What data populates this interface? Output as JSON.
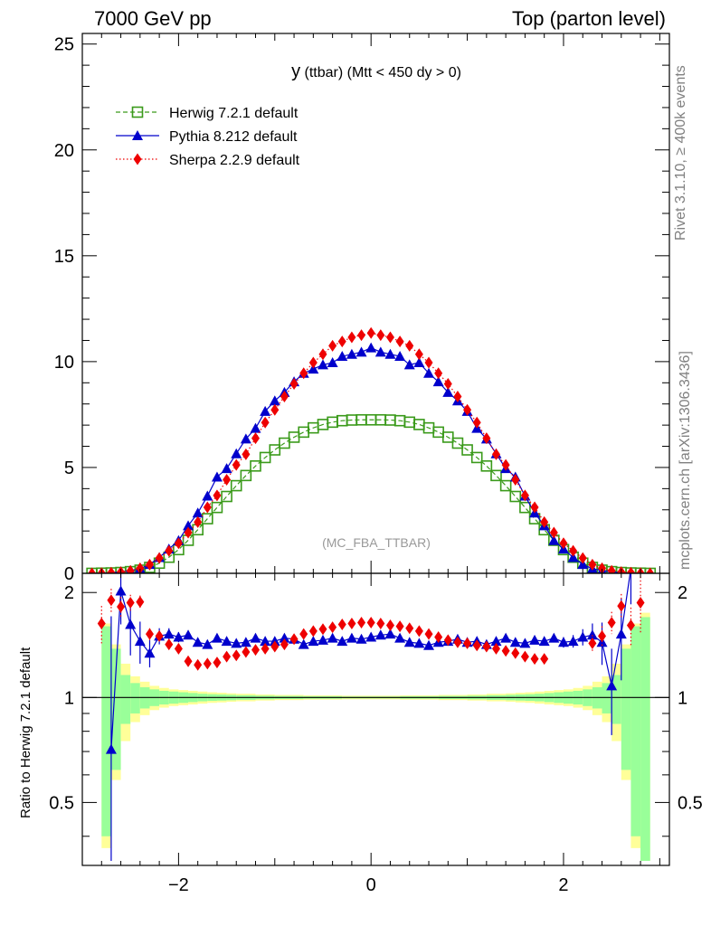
{
  "header": {
    "left": "7000 GeV pp",
    "right": "Top (parton level)"
  },
  "side_labels": {
    "rivet": "Rivet 3.1.10, ≥ 400k events",
    "mcplots": "mcplots.cern.ch [arXiv:1306.3436]"
  },
  "chart_data": [
    {
      "type": "line",
      "title": "y (ttbar) (Mtt < 450 dy > 0)",
      "title_main": "y",
      "title_rest": " (ttbar) (Mtt < 450 dy > 0)",
      "annotation": "(MC_FBA_TTBAR)",
      "xlim": [
        -3.0,
        3.1
      ],
      "ylim": [
        0,
        25.5
      ],
      "xticks": [
        -2,
        0,
        2
      ],
      "xtick_labels": [
        "−2",
        "0",
        "2"
      ],
      "yticks": [
        0,
        5,
        10,
        15,
        20,
        25
      ],
      "ytick_labels": [
        "0",
        "5",
        "10",
        "15",
        "20",
        "25"
      ],
      "legend_position": "top-left",
      "series": [
        {
          "name": "Herwig 7.2.1 default",
          "color": "#3a9a1a",
          "marker": "open-square",
          "linestyle": "dashed",
          "x": [
            -2.9,
            -2.8,
            -2.7,
            -2.6,
            -2.5,
            -2.4,
            -2.3,
            -2.2,
            -2.1,
            -2.0,
            -1.9,
            -1.8,
            -1.7,
            -1.6,
            -1.5,
            -1.4,
            -1.3,
            -1.2,
            -1.1,
            -1.0,
            -0.9,
            -0.8,
            -0.7,
            -0.6,
            -0.5,
            -0.4,
            -0.3,
            -0.2,
            -0.1,
            0.0,
            0.1,
            0.2,
            0.3,
            0.4,
            0.5,
            0.6,
            0.7,
            0.8,
            0.9,
            1.0,
            1.1,
            1.2,
            1.3,
            1.4,
            1.5,
            1.6,
            1.7,
            1.8,
            1.9,
            2.0,
            2.1,
            2.2,
            2.3,
            2.4,
            2.5,
            2.6,
            2.7,
            2.8,
            2.9
          ],
          "values": [
            0.0,
            0.01,
            0.02,
            0.04,
            0.08,
            0.15,
            0.28,
            0.48,
            0.76,
            1.12,
            1.56,
            2.06,
            2.58,
            3.11,
            3.63,
            4.14,
            4.62,
            5.07,
            5.47,
            5.83,
            6.15,
            6.43,
            6.67,
            6.87,
            7.03,
            7.14,
            7.21,
            7.24,
            7.25,
            7.25,
            7.25,
            7.24,
            7.21,
            7.14,
            7.03,
            6.87,
            6.67,
            6.43,
            6.15,
            5.83,
            5.47,
            5.07,
            4.62,
            4.14,
            3.63,
            3.11,
            2.58,
            2.06,
            1.56,
            1.12,
            0.76,
            0.48,
            0.28,
            0.15,
            0.08,
            0.04,
            0.02,
            0.01,
            0.0
          ]
        },
        {
          "name": "Pythia 8.212 default",
          "color": "#0000cc",
          "marker": "filled-triangle",
          "linestyle": "solid",
          "x": [
            -2.9,
            -2.8,
            -2.7,
            -2.6,
            -2.5,
            -2.4,
            -2.3,
            -2.2,
            -2.1,
            -2.0,
            -1.9,
            -1.8,
            -1.7,
            -1.6,
            -1.5,
            -1.4,
            -1.3,
            -1.2,
            -1.1,
            -1.0,
            -0.9,
            -0.8,
            -0.7,
            -0.6,
            -0.5,
            -0.4,
            -0.3,
            -0.2,
            -0.1,
            0.0,
            0.1,
            0.2,
            0.3,
            0.4,
            0.5,
            0.6,
            0.7,
            0.8,
            0.9,
            1.0,
            1.1,
            1.2,
            1.3,
            1.4,
            1.5,
            1.6,
            1.7,
            1.8,
            1.9,
            2.0,
            2.1,
            2.2,
            2.3,
            2.4,
            2.5,
            2.6,
            2.7,
            2.8,
            2.9
          ],
          "values": [
            0.0,
            0.01,
            0.03,
            0.07,
            0.13,
            0.22,
            0.42,
            0.75,
            1.15,
            1.55,
            2.25,
            2.85,
            3.65,
            4.55,
            4.95,
            5.65,
            6.35,
            6.85,
            7.65,
            8.15,
            8.55,
            9.05,
            9.45,
            9.65,
            9.85,
            9.95,
            10.25,
            10.35,
            10.45,
            10.65,
            10.45,
            10.35,
            10.25,
            9.85,
            9.95,
            9.45,
            9.05,
            8.55,
            8.15,
            7.65,
            6.85,
            6.35,
            5.65,
            4.95,
            4.55,
            3.65,
            2.85,
            2.25,
            1.55,
            1.15,
            0.75,
            0.42,
            0.22,
            0.13,
            0.07,
            0.03,
            0.02,
            0.01,
            0.0
          ]
        },
        {
          "name": "Sherpa 2.2.9 default",
          "color": "#ee0000",
          "marker": "filled-diamond",
          "linestyle": "dotted",
          "x": [
            -2.9,
            -2.8,
            -2.7,
            -2.6,
            -2.5,
            -2.4,
            -2.3,
            -2.2,
            -2.1,
            -2.0,
            -1.9,
            -1.8,
            -1.7,
            -1.6,
            -1.5,
            -1.4,
            -1.3,
            -1.2,
            -1.1,
            -1.0,
            -0.9,
            -0.8,
            -0.7,
            -0.6,
            -0.5,
            -0.4,
            -0.3,
            -0.2,
            -0.1,
            0.0,
            0.1,
            0.2,
            0.3,
            0.4,
            0.5,
            0.6,
            0.7,
            0.8,
            0.9,
            1.0,
            1.1,
            1.2,
            1.3,
            1.4,
            1.5,
            1.6,
            1.7,
            1.8,
            1.9,
            2.0,
            2.1,
            2.2,
            2.3,
            2.4,
            2.5,
            2.6,
            2.7,
            2.8,
            2.9
          ],
          "values": [
            0.0,
            0.01,
            0.03,
            0.06,
            0.12,
            0.24,
            0.41,
            0.72,
            1.06,
            1.42,
            1.92,
            2.42,
            3.12,
            3.68,
            4.42,
            5.12,
            5.62,
            6.38,
            7.12,
            7.72,
            8.35,
            8.95,
            9.45,
            9.95,
            10.35,
            10.75,
            10.95,
            11.15,
            11.25,
            11.35,
            11.25,
            11.15,
            10.95,
            10.75,
            10.35,
            9.95,
            9.45,
            8.95,
            8.35,
            7.72,
            7.12,
            6.38,
            5.62,
            5.12,
            4.42,
            3.68,
            3.12,
            2.42,
            1.92,
            1.42,
            1.06,
            0.72,
            0.41,
            0.24,
            0.12,
            0.06,
            0.03,
            0.01,
            0.0
          ]
        }
      ]
    },
    {
      "type": "line",
      "ylabel": "Ratio to Herwig 7.2.1 default",
      "xlim": [
        -3.0,
        3.1
      ],
      "ylim": [
        0.33,
        2.27
      ],
      "xticks": [
        -2,
        0,
        2
      ],
      "xtick_labels": [
        "−2",
        "0",
        "2"
      ],
      "yticks": [
        0.5,
        1,
        2
      ],
      "ytick_labels": [
        "0.5",
        "1",
        "2"
      ],
      "reference_line": 1,
      "bands": {
        "x_edges": [
          -2.8,
          -2.7,
          -2.6,
          -2.5,
          -2.4,
          -2.3,
          -2.2,
          -2.1,
          -2.0,
          -1.9,
          -1.8,
          -1.7,
          -1.6,
          -1.5,
          -1.4,
          -1.2,
          -1.0,
          -0.7,
          -0.3,
          0.3,
          0.7,
          1.0,
          1.2,
          1.4,
          1.5,
          1.6,
          1.7,
          1.8,
          1.9,
          2.0,
          2.1,
          2.2,
          2.3,
          2.4,
          2.5,
          2.6,
          2.7,
          2.8,
          2.9
        ],
        "green_half_width": [
          0.6,
          0.38,
          0.16,
          0.1,
          0.07,
          0.055,
          0.045,
          0.04,
          0.035,
          0.03,
          0.025,
          0.022,
          0.02,
          0.018,
          0.015,
          0.012,
          0.01,
          0.008,
          0.006,
          0.008,
          0.01,
          0.012,
          0.015,
          0.018,
          0.02,
          0.022,
          0.025,
          0.03,
          0.035,
          0.04,
          0.045,
          0.055,
          0.07,
          0.1,
          0.16,
          0.38,
          0.6,
          0.7
        ],
        "yellow_half_width": [
          0.63,
          0.42,
          0.25,
          0.15,
          0.11,
          0.08,
          0.065,
          0.055,
          0.05,
          0.045,
          0.04,
          0.035,
          0.032,
          0.028,
          0.025,
          0.02,
          0.017,
          0.014,
          0.012,
          0.014,
          0.017,
          0.02,
          0.025,
          0.028,
          0.032,
          0.035,
          0.04,
          0.045,
          0.05,
          0.055,
          0.065,
          0.08,
          0.11,
          0.15,
          0.25,
          0.42,
          0.63,
          0.75
        ],
        "green_color": "#99ff99",
        "yellow_color": "#ffff99"
      },
      "series": [
        {
          "name": "Pythia 8.212 default",
          "color": "#0000cc",
          "x": [
            -2.7,
            -2.6,
            -2.5,
            -2.4,
            -2.3,
            -2.2,
            -2.1,
            -2.0,
            -1.9,
            -1.8,
            -1.7,
            -1.6,
            -1.5,
            -1.4,
            -1.3,
            -1.2,
            -1.1,
            -1.0,
            -0.9,
            -0.8,
            -0.7,
            -0.6,
            -0.5,
            -0.4,
            -0.3,
            -0.2,
            -0.1,
            0.0,
            0.1,
            0.2,
            0.3,
            0.4,
            0.5,
            0.6,
            0.7,
            0.8,
            0.9,
            1.0,
            1.1,
            1.2,
            1.3,
            1.4,
            1.5,
            1.6,
            1.7,
            1.8,
            1.9,
            2.0,
            2.1,
            2.2,
            2.3,
            2.4,
            2.5,
            2.6,
            2.7
          ],
          "values": [
            0.71,
            2.02,
            1.62,
            1.45,
            1.34,
            1.5,
            1.52,
            1.49,
            1.51,
            1.44,
            1.42,
            1.48,
            1.45,
            1.43,
            1.44,
            1.48,
            1.45,
            1.45,
            1.48,
            1.47,
            1.42,
            1.45,
            1.46,
            1.48,
            1.45,
            1.48,
            1.47,
            1.49,
            1.51,
            1.52,
            1.48,
            1.44,
            1.43,
            1.41,
            1.44,
            1.45,
            1.47,
            1.44,
            1.45,
            1.42,
            1.45,
            1.48,
            1.44,
            1.43,
            1.46,
            1.45,
            1.48,
            1.44,
            1.45,
            1.49,
            1.51,
            1.44,
            1.08,
            1.52,
            2.35
          ],
          "err": [
            1.0,
            0.4,
            0.3,
            0.2,
            0.12,
            0.08,
            0.06,
            0.05,
            0.04,
            0.035,
            0.03,
            0.03,
            0.025,
            0.025,
            0.025,
            0.02,
            0.02,
            0.02,
            0.02,
            0.02,
            0.02,
            0.02,
            0.02,
            0.02,
            0.02,
            0.02,
            0.02,
            0.02,
            0.02,
            0.02,
            0.02,
            0.02,
            0.02,
            0.02,
            0.02,
            0.02,
            0.02,
            0.02,
            0.02,
            0.02,
            0.025,
            0.025,
            0.025,
            0.03,
            0.03,
            0.035,
            0.04,
            0.05,
            0.06,
            0.08,
            0.12,
            0.2,
            0.3,
            0.4,
            0.5
          ]
        },
        {
          "name": "Sherpa 2.2.9 default",
          "color": "#ee0000",
          "x": [
            -2.8,
            -2.7,
            -2.6,
            -2.5,
            -2.4,
            -2.3,
            -2.2,
            -2.1,
            -2.0,
            -1.9,
            -1.8,
            -1.7,
            -1.6,
            -1.5,
            -1.4,
            -1.3,
            -1.2,
            -1.1,
            -1.0,
            -0.9,
            -0.8,
            -0.7,
            -0.6,
            -0.5,
            -0.4,
            -0.3,
            -0.2,
            -0.1,
            0.0,
            0.1,
            0.2,
            0.3,
            0.4,
            0.5,
            0.6,
            0.7,
            0.8,
            0.9,
            1.0,
            1.1,
            1.2,
            1.3,
            1.4,
            1.5,
            1.6,
            1.7,
            1.8,
            2.3,
            2.4,
            2.5,
            2.6,
            2.7,
            2.8
          ],
          "values": [
            1.63,
            1.9,
            1.82,
            1.87,
            1.88,
            1.52,
            1.5,
            1.42,
            1.38,
            1.27,
            1.24,
            1.25,
            1.26,
            1.31,
            1.32,
            1.35,
            1.37,
            1.38,
            1.4,
            1.42,
            1.47,
            1.52,
            1.55,
            1.57,
            1.59,
            1.62,
            1.63,
            1.64,
            1.64,
            1.63,
            1.61,
            1.6,
            1.58,
            1.55,
            1.52,
            1.49,
            1.46,
            1.44,
            1.43,
            1.41,
            1.4,
            1.38,
            1.36,
            1.34,
            1.31,
            1.29,
            1.29,
            1.43,
            1.5,
            1.64,
            1.83,
            1.61,
            1.87
          ],
          "err": [
            0.2,
            0.15,
            0.12,
            0.1,
            0.08,
            0.06,
            0.05,
            0.04,
            0.035,
            0.03,
            0.025,
            0.025,
            0.02,
            0.02,
            0.02,
            0.02,
            0.02,
            0.02,
            0.02,
            0.02,
            0.02,
            0.02,
            0.02,
            0.02,
            0.02,
            0.02,
            0.02,
            0.02,
            0.02,
            0.02,
            0.02,
            0.02,
            0.02,
            0.02,
            0.02,
            0.02,
            0.02,
            0.02,
            0.02,
            0.02,
            0.02,
            0.02,
            0.02,
            0.02,
            0.025,
            0.025,
            0.03,
            0.08,
            0.1,
            0.12,
            0.15,
            0.2,
            0.35
          ]
        }
      ]
    }
  ]
}
